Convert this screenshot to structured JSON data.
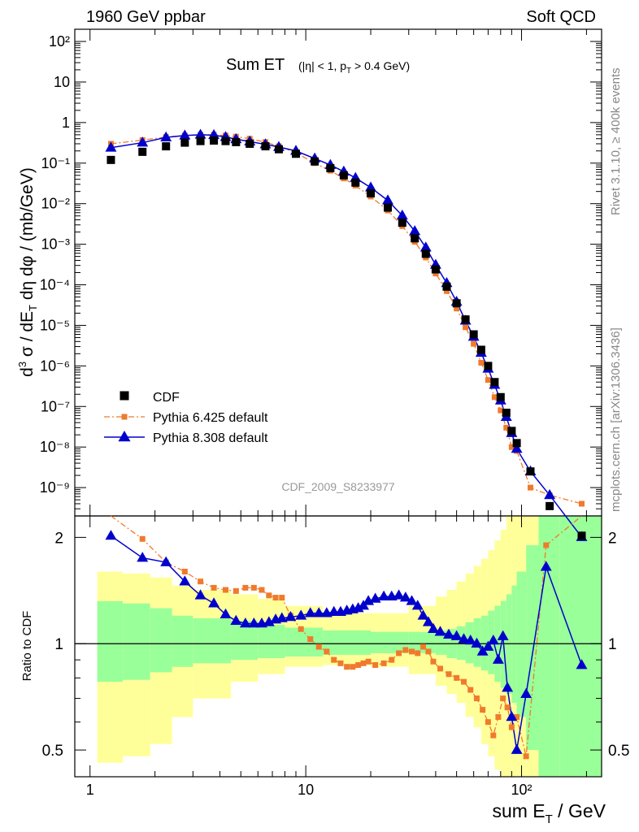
{
  "header": {
    "left": "1960 GeV ppbar",
    "right": "Soft QCD"
  },
  "side": {
    "top": "Rivet 3.1.10, ≥ 400k events",
    "bottom": "mcplots.cern.ch [arXiv:1306.3436]"
  },
  "analysis_id": "CDF_2009_S8233977",
  "colors": {
    "cdf": "#000000",
    "pythia6": "#f07a2c",
    "pythia8": "#0000cc",
    "band_yellow": "#ffff99",
    "band_green": "#99ff99"
  },
  "chart_data": [
    {
      "type": "line",
      "panel": "main",
      "title": "Sum ET",
      "title_sub": "(|η| < 1, p_T > 0.4 GeV)",
      "ylabel": "d³σ / dE_T dη dφ / (mb/GeV)",
      "xscale": "log",
      "yscale": "log",
      "xlim": [
        0.85,
        235
      ],
      "ylim": [
        2e-10,
        200
      ],
      "x_ticks": [
        1,
        10,
        100
      ],
      "x_tick_labels": [
        "1",
        "10",
        "10²"
      ],
      "y_ticks": [
        1e-09,
        1e-08,
        1e-07,
        1e-06,
        1e-05,
        0.0001,
        0.001,
        0.01,
        0.1,
        1,
        10,
        100
      ],
      "y_tick_labels": [
        "10⁻⁹",
        "10⁻⁸",
        "10⁻⁷",
        "10⁻⁶",
        "10⁻⁵",
        "10⁻⁴",
        "10⁻³",
        "10⁻²",
        "10⁻¹",
        "1",
        "10",
        "10²"
      ],
      "legend_position": "bottom-left",
      "series": [
        {
          "name": "CDF",
          "style": "square",
          "x": [
            1.25,
            1.75,
            2.25,
            2.75,
            3.25,
            3.75,
            4.25,
            4.75,
            5.5,
            6.5,
            7.5,
            9,
            11,
            13,
            15,
            17,
            20,
            24,
            28,
            32,
            36,
            40,
            45,
            50,
            55,
            60,
            65,
            70,
            75,
            80,
            85,
            90,
            95,
            110,
            135,
            190
          ],
          "y": [
            0.12,
            0.19,
            0.26,
            0.32,
            0.35,
            0.36,
            0.35,
            0.33,
            0.3,
            0.26,
            0.22,
            0.17,
            0.11,
            0.075,
            0.05,
            0.033,
            0.018,
            0.008,
            0.0034,
            0.0014,
            0.00058,
            0.00024,
            9e-05,
            3.5e-05,
            1.4e-05,
            6e-06,
            2.5e-06,
            1e-06,
            4e-07,
            1.7e-07,
            7e-08,
            2.5e-08,
            1.25e-08,
            2.5e-09,
            3.5e-10,
            6.5e-11
          ]
        },
        {
          "name": "Pythia 6.425 default",
          "style": "square-dashdot",
          "x": [
            1.25,
            1.75,
            2.25,
            2.75,
            3.25,
            3.75,
            4.25,
            4.75,
            5.5,
            6.5,
            7.5,
            9,
            11,
            13,
            15,
            17,
            20,
            24,
            28,
            32,
            36,
            40,
            45,
            50,
            55,
            60,
            65,
            70,
            75,
            80,
            85,
            90,
            95,
            110,
            135,
            190
          ],
          "y": [
            0.3,
            0.37,
            0.44,
            0.48,
            0.5,
            0.5,
            0.48,
            0.45,
            0.4,
            0.33,
            0.26,
            0.18,
            0.1,
            0.065,
            0.042,
            0.028,
            0.015,
            0.0068,
            0.0028,
            0.00115,
            0.00047,
            0.00019,
            7e-05,
            2.6e-05,
            9e-06,
            3.5e-06,
            1.2e-06,
            4.5e-07,
            1.7e-07,
            8e-08,
            3e-08,
            1e-08,
            8e-09,
            1e-09,
            6.5e-10,
            4e-10
          ]
        },
        {
          "name": "Pythia 8.308 default",
          "style": "triangle-line",
          "x": [
            1.25,
            1.75,
            2.25,
            2.75,
            3.25,
            3.75,
            4.25,
            4.75,
            5.5,
            6.5,
            7.5,
            9,
            11,
            13,
            15,
            17,
            20,
            24,
            28,
            32,
            36,
            40,
            45,
            50,
            55,
            60,
            65,
            70,
            75,
            80,
            85,
            90,
            95,
            110,
            135,
            190
          ],
          "y": [
            0.24,
            0.32,
            0.43,
            0.48,
            0.5,
            0.49,
            0.44,
            0.39,
            0.34,
            0.29,
            0.25,
            0.2,
            0.13,
            0.09,
            0.062,
            0.043,
            0.025,
            0.012,
            0.0051,
            0.0021,
            0.00083,
            0.00031,
            0.00011,
            3.8e-05,
            1.3e-05,
            5.2e-06,
            2.1e-06,
            8.5e-07,
            3.4e-07,
            1.4e-07,
            5.5e-08,
            2.2e-08,
            9e-09,
            2.5e-09,
            6.5e-10,
            6e-11
          ]
        }
      ]
    },
    {
      "type": "line",
      "panel": "ratio",
      "ylabel": "Ratio to CDF",
      "xlabel": "sum E_T / GeV",
      "xscale": "log",
      "xlim": [
        0.85,
        235
      ],
      "ylim": [
        0.42,
        2.3
      ],
      "y_ticks": [
        0.5,
        1,
        2
      ],
      "y_tick_labels": [
        "0.5",
        "1",
        "2"
      ],
      "reference": 1,
      "band_edges": [
        1.08,
        1.42,
        1.9,
        2.4,
        3,
        4.5,
        6,
        8,
        12,
        20,
        30,
        40,
        45,
        50,
        55,
        60,
        65,
        70,
        75,
        80,
        85,
        90,
        95,
        105,
        120,
        150,
        235
      ],
      "band_stat_lower": [
        0.78,
        0.79,
        0.83,
        0.86,
        0.88,
        0.9,
        0.91,
        0.92,
        0.93,
        0.94,
        0.94,
        0.93,
        0.91,
        0.9,
        0.88,
        0.86,
        0.84,
        0.82,
        0.78,
        0.75,
        0.72,
        0.68,
        0.62,
        0.5,
        0.42,
        0.42
      ],
      "band_stat_upper": [
        1.32,
        1.3,
        1.26,
        1.2,
        1.18,
        1.16,
        1.13,
        1.11,
        1.09,
        1.08,
        1.08,
        1.09,
        1.1,
        1.12,
        1.15,
        1.18,
        1.2,
        1.24,
        1.28,
        1.32,
        1.38,
        1.46,
        1.6,
        1.9,
        2.3,
        2.3
      ],
      "band_syst_lower": [
        0.46,
        0.48,
        0.52,
        0.62,
        0.7,
        0.78,
        0.82,
        0.86,
        0.87,
        0.86,
        0.82,
        0.76,
        0.72,
        0.68,
        0.62,
        0.58,
        0.52,
        0.48,
        0.44,
        0.42,
        0.42,
        0.42,
        0.42,
        0.42,
        0.42,
        0.42
      ],
      "band_syst_upper": [
        1.6,
        1.58,
        1.54,
        1.46,
        1.42,
        1.38,
        1.34,
        1.28,
        1.22,
        1.22,
        1.28,
        1.36,
        1.42,
        1.5,
        1.58,
        1.66,
        1.74,
        1.84,
        1.96,
        2.1,
        2.3,
        2.3,
        2.3,
        2.3,
        2.3,
        2.3
      ],
      "series": [
        {
          "name": "Pythia 6.425 default",
          "style": "square-dashdot",
          "x": [
            1.25,
            1.75,
            2.25,
            2.75,
            3.25,
            3.75,
            4.25,
            4.75,
            5.25,
            5.75,
            6.25,
            6.75,
            7.25,
            7.75,
            8.5,
            9.5,
            10.5,
            11.5,
            12.5,
            13.5,
            14.5,
            15.5,
            16.5,
            17.5,
            18.5,
            19.5,
            21,
            23,
            25,
            27,
            29,
            31,
            33,
            35,
            37,
            39,
            42,
            46,
            50,
            54,
            58,
            62,
            66,
            70,
            74,
            78,
            82,
            86,
            90,
            95,
            105,
            130,
            190
          ],
          "y": [
            2.45,
            1.98,
            1.7,
            1.6,
            1.5,
            1.44,
            1.42,
            1.41,
            1.44,
            1.44,
            1.42,
            1.37,
            1.35,
            1.35,
            1.2,
            1.1,
            1.03,
            0.98,
            0.95,
            0.9,
            0.88,
            0.86,
            0.86,
            0.87,
            0.88,
            0.89,
            0.87,
            0.88,
            0.9,
            0.94,
            0.96,
            0.95,
            0.94,
            0.98,
            0.95,
            0.89,
            0.85,
            0.82,
            0.8,
            0.78,
            0.74,
            0.7,
            0.65,
            0.6,
            0.55,
            0.62,
            0.7,
            0.66,
            0.58,
            0.62,
            0.48,
            1.9,
            2.4
          ]
        },
        {
          "name": "Pythia 8.308 default",
          "style": "triangle-line",
          "x": [
            1.25,
            1.75,
            2.25,
            2.75,
            3.25,
            3.75,
            4.25,
            4.75,
            5.25,
            5.75,
            6.25,
            6.75,
            7.25,
            7.75,
            8.5,
            9.5,
            10.5,
            11.5,
            12.5,
            13.5,
            14.5,
            15.5,
            16.5,
            17.5,
            18.5,
            19.5,
            21,
            23,
            25,
            27,
            29,
            31,
            33,
            35,
            37,
            39,
            42,
            46,
            50,
            54,
            58,
            62,
            66,
            70,
            74,
            78,
            82,
            86,
            90,
            95,
            105,
            130,
            190
          ],
          "y": [
            2.02,
            1.75,
            1.7,
            1.5,
            1.37,
            1.3,
            1.21,
            1.16,
            1.14,
            1.14,
            1.14,
            1.15,
            1.17,
            1.18,
            1.19,
            1.2,
            1.22,
            1.22,
            1.22,
            1.23,
            1.23,
            1.24,
            1.25,
            1.26,
            1.28,
            1.32,
            1.34,
            1.36,
            1.36,
            1.37,
            1.35,
            1.32,
            1.28,
            1.2,
            1.15,
            1.1,
            1.08,
            1.06,
            1.05,
            1.03,
            1.02,
            1.0,
            0.95,
            0.98,
            1.02,
            0.9,
            1.05,
            0.75,
            0.62,
            0.5,
            0.72,
            1.65,
            0.87
          ]
        }
      ]
    }
  ]
}
